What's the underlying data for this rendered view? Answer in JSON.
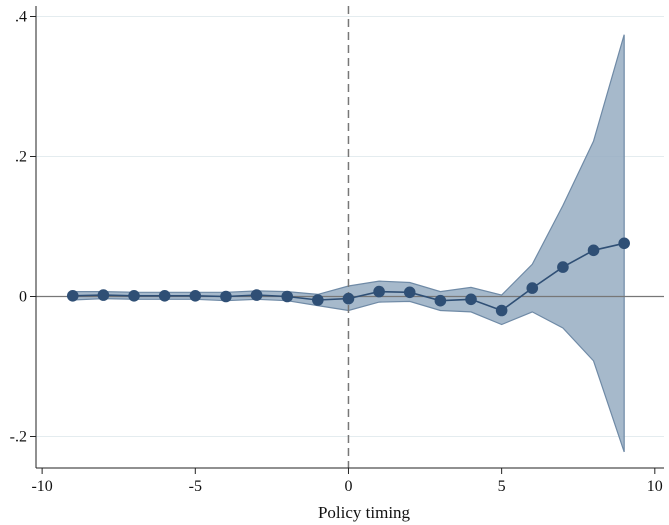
{
  "chart_data": {
    "type": "line",
    "title": "",
    "xlabel": "Policy timing",
    "ylabel": "",
    "xlim": [
      -10.2,
      10.3
    ],
    "ylim": [
      -0.245,
      0.415
    ],
    "x_ticks": [
      -10,
      -5,
      0,
      5,
      10
    ],
    "x_tick_labels": [
      "-10",
      "-5",
      "0",
      "5",
      "10"
    ],
    "y_ticks": [
      -0.2,
      0,
      0.2,
      0.4
    ],
    "y_tick_labels": [
      "-.2",
      "0",
      ".2",
      ".4"
    ],
    "grid": true,
    "reference_lines": {
      "vertical_x": 0,
      "horizontal_y": 0
    },
    "colors": {
      "line": "#2f4f75",
      "band": "#97adc2",
      "band_edge": "#6f8aa6",
      "reference": "#777777"
    },
    "series": [
      {
        "x": [
          -9,
          -8,
          -7,
          -6,
          -5,
          -4,
          -3,
          -2,
          -1,
          0,
          1,
          2,
          3,
          4,
          5,
          6,
          7,
          8,
          9
        ],
        "values": [
          0.001,
          0.002,
          0.001,
          0.001,
          0.001,
          0.0,
          0.002,
          0.0,
          -0.005,
          -0.003,
          0.007,
          0.006,
          -0.006,
          -0.004,
          -0.02,
          0.012,
          0.042,
          0.066,
          0.076
        ],
        "ci_low": [
          -0.005,
          -0.003,
          -0.004,
          -0.004,
          -0.004,
          -0.006,
          -0.004,
          -0.006,
          -0.013,
          -0.02,
          -0.008,
          -0.007,
          -0.02,
          -0.022,
          -0.04,
          -0.022,
          -0.045,
          -0.092,
          -0.222
        ],
        "ci_high": [
          0.007,
          0.007,
          0.006,
          0.006,
          0.006,
          0.006,
          0.008,
          0.007,
          0.003,
          0.015,
          0.022,
          0.02,
          0.007,
          0.013,
          0.002,
          0.046,
          0.13,
          0.222,
          0.374
        ]
      }
    ]
  }
}
